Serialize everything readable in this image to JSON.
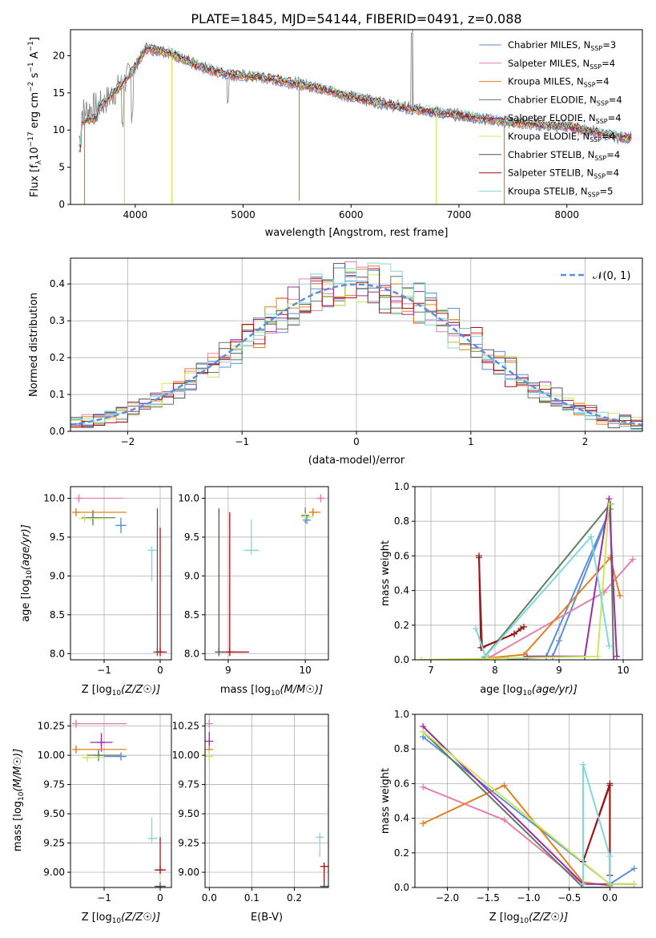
{
  "colors": {
    "Chabrier MILES": "#5b8fd9",
    "Salpeter MILES": "#e67fb0",
    "Kroupa MILES": "#e3801f",
    "Chabrier ELODIE": "#5f7f60",
    "Salpeter ELODIE": "#9b2ca8",
    "Kroupa ELODIE": "#cce85a",
    "Chabrier STELIB": "#555555",
    "Salpeter STELIB": "#aa1111",
    "Kroupa STELIB": "#7fd8dc",
    "normal": "#5b8fd9",
    "data": "#808080"
  },
  "chart_data": [
    {
      "id": "spectrum",
      "type": "line",
      "title": "PLATE=1845, MJD=54144, FIBERID=0491, z=0.088",
      "xlabel": "wavelength [Angstrom, rest frame]",
      "ylabel": "Flux [f",
      "xlim": [
        3400,
        8700
      ],
      "ylim": [
        0,
        23.5
      ],
      "xticks": [
        "4000",
        "5000",
        "6000",
        "7000",
        "8000"
      ],
      "yticks": [
        "0",
        "5",
        "10",
        "15",
        "20"
      ],
      "legend_position": "top-right",
      "legend": [
        {
          "name": "Chabrier MILES",
          "nssp": "3"
        },
        {
          "name": "Salpeter MILES",
          "nssp": "4"
        },
        {
          "name": "Kroupa MILES",
          "nssp": "4"
        },
        {
          "name": "Chabrier ELODIE",
          "nssp": "4"
        },
        {
          "name": "Salpeter ELODIE",
          "nssp": "4"
        },
        {
          "name": "Kroupa ELODIE",
          "nssp": "4"
        },
        {
          "name": "Chabrier STELIB",
          "nssp": "4"
        },
        {
          "name": "Salpeter STELIB",
          "nssp": "4"
        },
        {
          "name": "Kroupa STELIB",
          "nssp": "5"
        }
      ],
      "continuum": [
        [
          3500,
          12.5
        ],
        [
          3700,
          13.5
        ],
        [
          3900,
          16.5
        ],
        [
          4000,
          18.5
        ],
        [
          4100,
          21
        ],
        [
          4300,
          20.5
        ],
        [
          4600,
          18.5
        ],
        [
          4850,
          17.5
        ],
        [
          5200,
          17
        ],
        [
          5600,
          16
        ],
        [
          6000,
          14.5
        ],
        [
          6500,
          13
        ],
        [
          7000,
          12
        ],
        [
          7500,
          11
        ],
        [
          8000,
          10.5
        ],
        [
          8500,
          9
        ]
      ],
      "dips": [
        {
          "x": 3530,
          "y": 0
        },
        {
          "x": 3900,
          "y": 0
        },
        {
          "x": 4340,
          "y": 0
        },
        {
          "x": 5520,
          "y": 0.5
        },
        {
          "x": 6790,
          "y": 0
        },
        {
          "x": 7420,
          "y": 0
        }
      ]
    },
    {
      "id": "residuals",
      "type": "step",
      "xlabel": "(data-model)/error",
      "ylabel": "Normed distribution",
      "xlim": [
        -2.5,
        2.5
      ],
      "ylim": [
        0,
        0.47
      ],
      "xticks": [
        "−2",
        "−1",
        "0",
        "1",
        "2"
      ],
      "yticks": [
        "0.0",
        "0.1",
        "0.2",
        "0.3",
        "0.4"
      ],
      "legend": "𝒩(0, 1)",
      "legend_position": "top-right",
      "bin_width": 0.1
    },
    {
      "id": "age-vs-Z",
      "type": "errorbar",
      "xlabel": "Z [log",
      "ylabel": "age  [log",
      "xlim": [
        -1.6,
        0.2
      ],
      "ylim": [
        7.92,
        10.15
      ],
      "xticks": [
        "−1",
        "0"
      ],
      "yticks": [
        "8.0",
        "8.5",
        "9.0",
        "9.5",
        "10.0"
      ],
      "points": [
        {
          "series": "Salpeter MILES",
          "x": -1.45,
          "y": 10.0,
          "xerr": [
            0.05,
            0.8
          ],
          "yerr": [
            0.03,
            0.03
          ]
        },
        {
          "series": "Kroupa MILES",
          "x": -1.5,
          "y": 9.82,
          "xerr": [
            0.0,
            0.9
          ],
          "yerr": [
            0.04,
            0.04
          ]
        },
        {
          "series": "Chabrier ELODIE",
          "x": -1.2,
          "y": 9.75,
          "xerr": [
            0.2,
            0.4
          ],
          "yerr": [
            0.1,
            0.1
          ]
        },
        {
          "series": "Kroupa ELODIE",
          "x": -1.35,
          "y": 9.74,
          "xerr": [
            0.1,
            0.4
          ],
          "yerr": [
            0.03,
            0.03
          ]
        },
        {
          "series": "Chabrier MILES",
          "x": -0.7,
          "y": 9.65,
          "xerr": [
            0.1,
            0.1
          ],
          "yerr": [
            0.1,
            0.1
          ]
        },
        {
          "series": "Kroupa STELIB",
          "x": -0.15,
          "y": 9.33,
          "xerr": [
            0.0,
            0.1
          ],
          "yerr": [
            0.4,
            0.0
          ]
        },
        {
          "series": "Chabrier STELIB",
          "x": -0.05,
          "y": 8.02,
          "xerr": [
            0.0,
            0.1
          ],
          "yerr": [
            0.0,
            1.85
          ]
        },
        {
          "series": "Salpeter STELIB",
          "x": 0.0,
          "y": 8.02,
          "xerr": [
            0.0,
            0.12
          ],
          "yerr": [
            0.0,
            1.6
          ]
        }
      ]
    },
    {
      "id": "age-vs-mass",
      "type": "errorbar",
      "xlabel": "mass [log",
      "xlim": [
        8.7,
        10.3
      ],
      "ylim": [
        7.92,
        10.15
      ],
      "xticks": [
        "9",
        "10"
      ],
      "yticks": [
        "8.0",
        "8.5",
        "9.0",
        "9.5",
        "10.0"
      ],
      "points": [
        {
          "series": "Salpeter MILES",
          "x": 10.2,
          "y": 10.0,
          "xerr": [
            0.05,
            0.05
          ],
          "yerr": [
            0.03,
            0.03
          ]
        },
        {
          "series": "Kroupa MILES",
          "x": 10.1,
          "y": 9.82,
          "xerr": [
            0.05,
            0.1
          ],
          "yerr": [
            0.04,
            0.04
          ]
        },
        {
          "series": "Chabrier ELODIE",
          "x": 10.0,
          "y": 9.78,
          "xerr": [
            0.05,
            0.05
          ],
          "yerr": [
            0.1,
            0.1
          ]
        },
        {
          "series": "Kroupa ELODIE",
          "x": 10.0,
          "y": 9.76,
          "xerr": [
            0.0,
            0.1
          ],
          "yerr": [
            0.04,
            0.04
          ]
        },
        {
          "series": "Chabrier MILES",
          "x": 10.02,
          "y": 9.72,
          "xerr": [
            0.05,
            0.05
          ],
          "yerr": [
            0.05,
            0.05
          ]
        },
        {
          "series": "Kroupa STELIB",
          "x": 9.3,
          "y": 9.33,
          "xerr": [
            0.1,
            0.1
          ],
          "yerr": [
            0.0,
            0.4
          ]
        },
        {
          "series": "Chabrier STELIB",
          "x": 8.88,
          "y": 8.02,
          "xerr": [
            0.0,
            0.2
          ],
          "yerr": [
            0.0,
            1.85
          ]
        },
        {
          "series": "Salpeter STELIB",
          "x": 9.02,
          "y": 8.02,
          "xerr": [
            0.0,
            0.25
          ],
          "yerr": [
            0.0,
            1.8
          ]
        }
      ]
    },
    {
      "id": "mass-weight-vs-age",
      "type": "line",
      "xlabel": "age  [log",
      "ylabel": "mass weight",
      "xlim": [
        6.75,
        10.3
      ],
      "ylim": [
        0,
        1.0
      ],
      "xticks": [
        "7",
        "8",
        "9",
        "10"
      ],
      "yticks": [
        "0.0",
        "0.2",
        "0.4",
        "0.6",
        "0.8",
        "1.0"
      ],
      "series": [
        {
          "name": "Chabrier MILES",
          "x": [
            8.8,
            9.8,
            9.0,
            8.9,
            8.2
          ],
          "y": [
            0.02,
            0.87,
            0.11,
            0.02,
            0.0
          ]
        },
        {
          "name": "Salpeter MILES",
          "x": [
            7.85,
            9.7,
            10.15
          ],
          "y": [
            0.0,
            0.39,
            0.58
          ]
        },
        {
          "name": "Kroupa MILES",
          "x": [
            7.9,
            8.45,
            9.8,
            9.95
          ],
          "y": [
            0.01,
            0.03,
            0.59,
            0.37
          ]
        },
        {
          "name": "Chabrier ELODIE",
          "x": [
            7.8,
            9.8,
            9.85
          ],
          "y": [
            0.0,
            0.9,
            0.0
          ]
        },
        {
          "name": "Salpeter ELODIE",
          "x": [
            8.5,
            9.4,
            9.78,
            9.9
          ],
          "y": [
            0.02,
            0.02,
            0.93,
            0.02
          ]
        },
        {
          "name": "Kroupa ELODIE",
          "x": [
            6.85,
            9.6,
            9.78
          ],
          "y": [
            0.0,
            0.02,
            0.9
          ]
        },
        {
          "name": "Chabrier STELIB",
          "x": [
            7.75,
            7.8,
            8.3,
            8.4
          ],
          "y": [
            0.59,
            0.07,
            0.15,
            0.18
          ]
        },
        {
          "name": "Salpeter STELIB",
          "x": [
            7.75,
            7.78,
            8.3,
            8.45
          ],
          "y": [
            0.6,
            0.07,
            0.15,
            0.19
          ]
        },
        {
          "name": "Kroupa STELIB",
          "x": [
            7.7,
            7.85,
            9.5,
            9.78
          ],
          "y": [
            0.18,
            0.02,
            0.71,
            0.08
          ]
        }
      ]
    },
    {
      "id": "mass-vs-Z",
      "type": "errorbar",
      "xlabel": "Z [log",
      "ylabel": "mass [log",
      "xlim": [
        -1.6,
        0.2
      ],
      "ylim": [
        8.87,
        10.35
      ],
      "xticks": [
        "−1",
        "0"
      ],
      "yticks": [
        "9.00",
        "9.25",
        "9.50",
        "9.75",
        "10.00",
        "10.25"
      ],
      "points": [
        {
          "series": "Salpeter MILES",
          "x": -1.5,
          "y": 10.27,
          "xerr": [
            0.0,
            0.9
          ],
          "yerr": [
            0.03,
            0.03
          ]
        },
        {
          "series": "Salpeter ELODIE",
          "x": -1.05,
          "y": 10.11,
          "xerr": [
            0.2,
            0.2
          ],
          "yerr": [
            0.08,
            0.08
          ]
        },
        {
          "series": "Kroupa MILES",
          "x": -1.5,
          "y": 10.05,
          "xerr": [
            0.0,
            0.9
          ],
          "yerr": [
            0.03,
            0.03
          ]
        },
        {
          "series": "Chabrier ELODIE",
          "x": -1.1,
          "y": 10.0,
          "xerr": [
            0.2,
            0.4
          ],
          "yerr": [
            0.05,
            0.05
          ]
        },
        {
          "series": "Chabrier MILES",
          "x": -0.7,
          "y": 9.99,
          "xerr": [
            0.3,
            0.1
          ],
          "yerr": [
            0.03,
            0.03
          ]
        },
        {
          "series": "Kroupa ELODIE",
          "x": -1.3,
          "y": 9.98,
          "xerr": [
            0.1,
            0.3
          ],
          "yerr": [
            0.02,
            0.02
          ]
        },
        {
          "series": "Kroupa STELIB",
          "x": -0.15,
          "y": 9.29,
          "xerr": [
            0.0,
            0.1
          ],
          "yerr": [
            0.0,
            0.18
          ]
        },
        {
          "series": "Salpeter STELIB",
          "x": 0.0,
          "y": 9.02,
          "xerr": [
            0.1,
            0.1
          ],
          "yerr": [
            0.0,
            0.28
          ]
        },
        {
          "series": "Chabrier STELIB",
          "x": 0.0,
          "y": 8.88,
          "xerr": [
            0.1,
            0.1
          ],
          "yerr": [
            0.0,
            0.0
          ]
        }
      ]
    },
    {
      "id": "mass-vs-EBV",
      "type": "errorbar",
      "xlabel": "E(B-V)",
      "xlim": [
        -0.01,
        0.28
      ],
      "ylim": [
        8.87,
        10.35
      ],
      "xticks": [
        "0.0",
        "0.1",
        "0.2"
      ],
      "yticks": [
        "9.00",
        "9.25",
        "9.50",
        "9.75",
        "10.00",
        "10.25"
      ],
      "points": [
        {
          "series": "Salpeter MILES",
          "x": 0.0,
          "y": 10.27,
          "yerr": [
            0.03,
            0.03
          ]
        },
        {
          "series": "Salpeter ELODIE",
          "x": 0.0,
          "y": 10.12,
          "yerr": [
            0.08,
            0.08
          ]
        },
        {
          "series": "Kroupa MILES",
          "x": 0.0,
          "y": 10.05,
          "yerr": [
            0.03,
            0.03
          ]
        },
        {
          "series": "Kroupa ELODIE",
          "x": 0.0,
          "y": 9.99,
          "yerr": [
            0.05,
            0.05
          ]
        },
        {
          "series": "Kroupa STELIB",
          "x": 0.26,
          "y": 9.3,
          "yerr": [
            0.17,
            0.0
          ]
        },
        {
          "series": "Salpeter STELIB",
          "x": 0.27,
          "y": 9.05,
          "yerr": [
            0.25,
            0.0
          ]
        },
        {
          "series": "Chabrier STELIB",
          "x": 0.27,
          "y": 8.88,
          "yerr": [
            0.15,
            0.0
          ]
        }
      ]
    },
    {
      "id": "mass-weight-vs-Z",
      "type": "line",
      "xlabel": "Z [log",
      "ylabel": "mass weight",
      "xlim": [
        -2.4,
        0.4
      ],
      "ylim": [
        0,
        1.0
      ],
      "xticks": [
        "−2.0",
        "−1.5",
        "−1.0",
        "−0.5",
        "0.0"
      ],
      "yticks": [
        "0.0",
        "0.2",
        "0.4",
        "0.6",
        "0.8",
        "1.0"
      ],
      "series": [
        {
          "name": "Chabrier MILES",
          "x": [
            -2.3,
            0.0,
            0.3
          ],
          "y": [
            0.87,
            0.02,
            0.11
          ]
        },
        {
          "name": "Salpeter MILES",
          "x": [
            -2.3,
            -1.3,
            -0.33
          ],
          "y": [
            0.58,
            0.39,
            0.02
          ]
        },
        {
          "name": "Kroupa MILES",
          "x": [
            -2.3,
            -1.3,
            -0.33,
            0.0
          ],
          "y": [
            0.37,
            0.59,
            0.03,
            0.01
          ]
        },
        {
          "name": "Chabrier ELODIE",
          "x": [
            -2.3,
            -0.33,
            0.0
          ],
          "y": [
            0.9,
            0.0,
            0.0
          ]
        },
        {
          "name": "Salpeter ELODIE",
          "x": [
            -2.3,
            -0.33,
            0.0,
            0.3
          ],
          "y": [
            0.93,
            0.02,
            0.02,
            0.02
          ]
        },
        {
          "name": "Kroupa ELODIE",
          "x": [
            -2.3,
            0.0,
            0.3
          ],
          "y": [
            0.9,
            0.02,
            0.02
          ]
        },
        {
          "name": "Chabrier STELIB",
          "x": [
            -0.33,
            0.0,
            0.0
          ],
          "y": [
            0.15,
            0.59,
            0.07
          ]
        },
        {
          "name": "Salpeter STELIB",
          "x": [
            -0.33,
            0.0,
            0.0
          ],
          "y": [
            0.15,
            0.6,
            0.07
          ]
        },
        {
          "name": "Kroupa STELIB",
          "x": [
            -0.33,
            -0.33,
            0.0,
            0.0
          ],
          "y": [
            0.02,
            0.71,
            0.18,
            0.02
          ]
        }
      ]
    }
  ]
}
